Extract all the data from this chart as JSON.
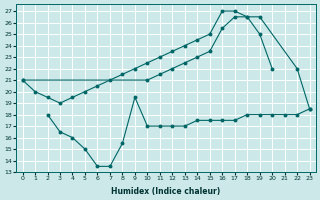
{
  "xlabel": "Humidex (Indice chaleur)",
  "bg_color": "#cce8e8",
  "grid_color": "#ffffff",
  "line_color": "#006666",
  "xlim": [
    -0.5,
    23.5
  ],
  "ylim": [
    13,
    27.6
  ],
  "yticks": [
    13,
    14,
    15,
    16,
    17,
    18,
    19,
    20,
    21,
    22,
    23,
    24,
    25,
    26,
    27
  ],
  "xticks": [
    0,
    1,
    2,
    3,
    4,
    5,
    6,
    7,
    8,
    9,
    10,
    11,
    12,
    13,
    14,
    15,
    16,
    17,
    18,
    19,
    20,
    21,
    22,
    23
  ],
  "line1_x": [
    0,
    1,
    2,
    3,
    4,
    5,
    6,
    7,
    8,
    9,
    10,
    11,
    12,
    13,
    14,
    15,
    16,
    17,
    18,
    19,
    20
  ],
  "line1_y": [
    21.0,
    20.0,
    19.5,
    19.0,
    19.5,
    20.0,
    20.5,
    21.0,
    21.5,
    22.0,
    22.5,
    23.0,
    23.5,
    24.0,
    24.5,
    25.0,
    27.0,
    27.0,
    26.5,
    25.0,
    22.0
  ],
  "line2_x": [
    0,
    10,
    11,
    12,
    13,
    14,
    15,
    16,
    17,
    18,
    19,
    22,
    23
  ],
  "line2_y": [
    21.0,
    21.0,
    21.5,
    22.0,
    22.5,
    23.0,
    23.5,
    25.5,
    26.5,
    26.5,
    26.5,
    22.0,
    18.5
  ],
  "line3_x": [
    2,
    3,
    4,
    5,
    6,
    7,
    8,
    9,
    10,
    11,
    12,
    13,
    14,
    15,
    16,
    17,
    18,
    19,
    20,
    21,
    22,
    23
  ],
  "line3_y": [
    18.0,
    16.5,
    16.0,
    15.0,
    13.5,
    13.5,
    15.5,
    19.5,
    17.0,
    17.0,
    17.0,
    17.0,
    17.5,
    17.5,
    17.5,
    17.5,
    18.0,
    18.0,
    18.0,
    18.0,
    18.0,
    18.5
  ]
}
